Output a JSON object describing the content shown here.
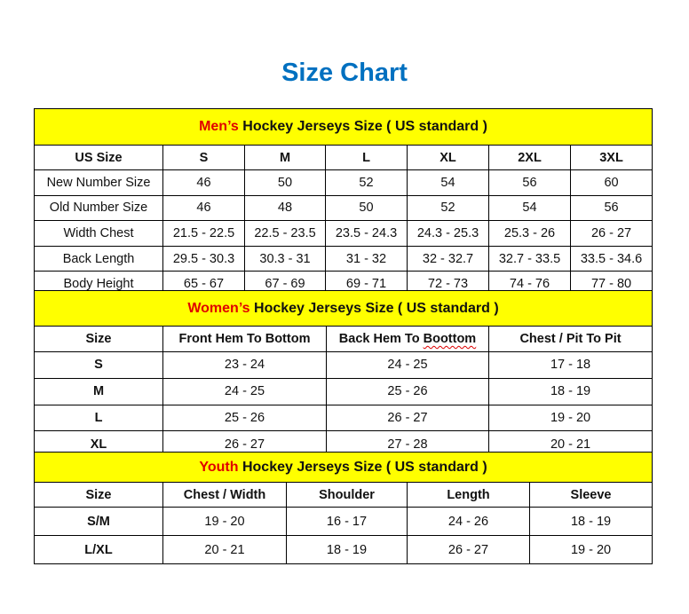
{
  "title": "Size Chart",
  "colors": {
    "title": "#0070C0",
    "band": "#FFFF00",
    "highlight": "#E00000"
  },
  "men": {
    "band_highlight": "Men’s",
    "band_rest": " Hockey Jerseys Size ( US standard )",
    "headers": [
      "US Size",
      "S",
      "M",
      "L",
      "XL",
      "2XL",
      "3XL"
    ],
    "rows": [
      [
        "New Number Size",
        "46",
        "50",
        "52",
        "54",
        "56",
        "60"
      ],
      [
        "Old Number Size",
        "46",
        "48",
        "50",
        "52",
        "54",
        "56"
      ],
      [
        "Width Chest",
        "21.5 - 22.5",
        "22.5 - 23.5",
        "23.5 - 24.3",
        "24.3 - 25.3",
        "25.3 - 26",
        "26 - 27"
      ],
      [
        "Back Length",
        "29.5 - 30.3",
        "30.3 - 31",
        "31 - 32",
        "32 - 32.7",
        "32.7 - 33.5",
        "33.5 - 34.6"
      ],
      [
        "Body Height",
        "65 - 67",
        "67 - 69",
        "69 - 71",
        "72 - 73",
        "74 - 76",
        "77 - 80"
      ]
    ]
  },
  "women": {
    "band_highlight": "Women’s",
    "band_rest": " Hockey Jerseys Size ( US standard )",
    "headers": [
      "Size",
      "Front Hem To Bottom",
      "Back Hem To Boottom",
      "Chest / Pit To Pit"
    ],
    "rows": [
      [
        "S",
        "23 - 24",
        "24 - 25",
        "17 - 18"
      ],
      [
        "M",
        "24 - 25",
        "25 - 26",
        "18 - 19"
      ],
      [
        "L",
        "25 - 26",
        "26 - 27",
        "19 - 20"
      ],
      [
        "XL",
        "26 - 27",
        "27 - 28",
        "20 - 21"
      ]
    ]
  },
  "youth": {
    "band_highlight": "Youth",
    "band_rest": " Hockey Jerseys Size ( US standard )",
    "headers": [
      "Size",
      "Chest / Width",
      "Shoulder",
      "Length",
      "Sleeve"
    ],
    "rows": [
      [
        "S/M",
        "19 - 20",
        "16 - 17",
        "24 - 26",
        "18 - 19"
      ],
      [
        "L/XL",
        "20 - 21",
        "18 - 19",
        "26 - 27",
        "19 - 20"
      ]
    ]
  }
}
